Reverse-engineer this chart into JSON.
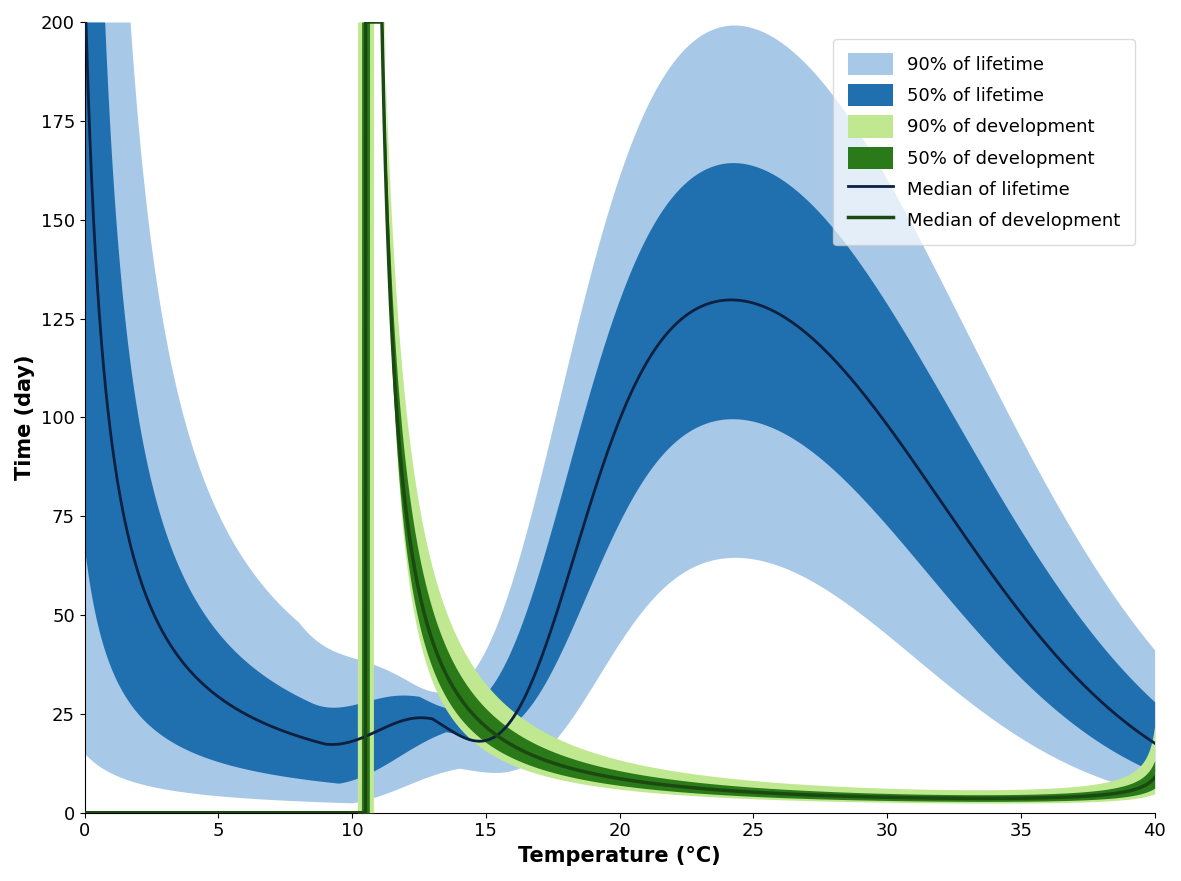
{
  "xlabel": "Temperature (°C)",
  "ylabel": "Time (day)",
  "xlim": [
    0,
    40
  ],
  "ylim": [
    0,
    200
  ],
  "xticks": [
    0,
    5,
    10,
    15,
    20,
    25,
    30,
    35,
    40
  ],
  "yticks": [
    0,
    25,
    50,
    75,
    100,
    125,
    150,
    175,
    200
  ],
  "color_lifetime_90": "#a8c8e8",
  "color_lifetime_50": "#2070b0",
  "color_dev_90": "#c0e890",
  "color_dev_50": "#2a7a1a",
  "color_median_lifetime": "#0d2040",
  "color_median_dev": "#1a4a10",
  "legend_labels": [
    "90% of lifetime",
    "50% of lifetime",
    "90% of development",
    "50% of development",
    "Median of lifetime",
    "Median of development"
  ],
  "figsize": [
    11.81,
    8.81
  ],
  "dpi": 100
}
